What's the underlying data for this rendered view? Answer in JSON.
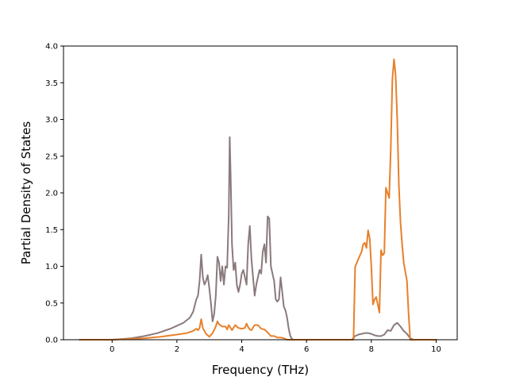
{
  "chart_data": {
    "type": "line",
    "title": "",
    "xlabel": "Frequency (THz)",
    "ylabel": "Partial Density of States",
    "xlim": [
      -1.5,
      10.65
    ],
    "ylim": [
      0,
      4.0
    ],
    "xticks": [
      0,
      2,
      4,
      6,
      8,
      10
    ],
    "xtick_labels": [
      "0",
      "2",
      "4",
      "6",
      "8",
      "10"
    ],
    "yticks": [
      0,
      0.5,
      1.0,
      1.5,
      2.0,
      2.5,
      3.0,
      3.5,
      4.0
    ],
    "ytick_labels": [
      "0.0",
      "0.5",
      "1.0",
      "1.5",
      "2.0",
      "2.5",
      "3.0",
      "3.5",
      "4.0"
    ],
    "grid": false,
    "legend": "none",
    "series": [
      {
        "color": "#8a7a7c",
        "x": [
          -1.0,
          0.0,
          0.3,
          0.6,
          1.0,
          1.4,
          1.8,
          2.0,
          2.2,
          2.4,
          2.5,
          2.6,
          2.65,
          2.7,
          2.75,
          2.8,
          2.85,
          2.9,
          2.95,
          3.0,
          3.05,
          3.1,
          3.15,
          3.2,
          3.25,
          3.3,
          3.35,
          3.4,
          3.45,
          3.5,
          3.55,
          3.6,
          3.63,
          3.66,
          3.7,
          3.75,
          3.8,
          3.85,
          3.9,
          3.95,
          4.0,
          4.05,
          4.1,
          4.15,
          4.2,
          4.25,
          4.3,
          4.35,
          4.4,
          4.45,
          4.5,
          4.55,
          4.6,
          4.65,
          4.7,
          4.75,
          4.8,
          4.85,
          4.9,
          4.95,
          5.0,
          5.05,
          5.1,
          5.15,
          5.2,
          5.25,
          5.3,
          5.35,
          5.4,
          5.45,
          5.5,
          5.55,
          5.6,
          6.0,
          7.0,
          7.4,
          7.5,
          7.6,
          7.7,
          7.8,
          7.9,
          8.0,
          8.1,
          8.2,
          8.3,
          8.4,
          8.5,
          8.6,
          8.7,
          8.8,
          8.9,
          9.0,
          9.1,
          9.2,
          9.3,
          10.0
        ],
        "y": [
          0.0,
          0.0,
          0.01,
          0.02,
          0.05,
          0.09,
          0.15,
          0.19,
          0.23,
          0.3,
          0.38,
          0.55,
          0.6,
          0.8,
          1.16,
          0.85,
          0.75,
          0.8,
          0.88,
          0.7,
          0.5,
          0.25,
          0.35,
          0.6,
          1.13,
          1.05,
          0.8,
          1.0,
          0.75,
          1.0,
          0.98,
          1.7,
          2.76,
          2.2,
          1.3,
          0.95,
          1.05,
          0.75,
          0.65,
          0.75,
          0.9,
          0.95,
          0.85,
          0.75,
          1.3,
          1.55,
          1.1,
          0.85,
          0.6,
          0.75,
          0.85,
          0.95,
          0.9,
          1.2,
          1.3,
          1.05,
          1.68,
          1.65,
          1.0,
          0.9,
          0.8,
          0.55,
          0.52,
          0.55,
          0.85,
          0.65,
          0.45,
          0.4,
          0.3,
          0.15,
          0.05,
          0.01,
          0.0,
          0.0,
          0.0,
          0.0,
          0.05,
          0.07,
          0.08,
          0.09,
          0.09,
          0.08,
          0.06,
          0.05,
          0.05,
          0.07,
          0.13,
          0.12,
          0.2,
          0.23,
          0.18,
          0.12,
          0.08,
          0.02,
          0.0,
          0.0
        ]
      },
      {
        "color": "#e8802a",
        "x": [
          -1.0,
          0.0,
          0.5,
          1.0,
          1.5,
          2.0,
          2.3,
          2.5,
          2.6,
          2.65,
          2.7,
          2.75,
          2.8,
          2.9,
          3.0,
          3.1,
          3.2,
          3.25,
          3.3,
          3.4,
          3.5,
          3.55,
          3.6,
          3.7,
          3.8,
          3.9,
          4.0,
          4.1,
          4.15,
          4.2,
          4.25,
          4.3,
          4.4,
          4.5,
          4.6,
          4.7,
          4.8,
          4.9,
          5.0,
          5.1,
          5.2,
          5.3,
          5.4,
          5.5,
          5.6,
          7.0,
          7.45,
          7.5,
          7.6,
          7.7,
          7.75,
          7.8,
          7.85,
          7.9,
          7.95,
          8.0,
          8.05,
          8.1,
          8.15,
          8.2,
          8.25,
          8.3,
          8.35,
          8.4,
          8.45,
          8.5,
          8.55,
          8.6,
          8.65,
          8.7,
          8.75,
          8.8,
          8.85,
          8.9,
          8.95,
          9.0,
          9.1,
          9.15,
          9.2,
          9.3,
          10.0
        ],
        "y": [
          0.0,
          0.0,
          0.01,
          0.02,
          0.04,
          0.07,
          0.09,
          0.12,
          0.15,
          0.13,
          0.16,
          0.28,
          0.16,
          0.08,
          0.04,
          0.09,
          0.18,
          0.25,
          0.21,
          0.18,
          0.18,
          0.14,
          0.2,
          0.13,
          0.2,
          0.16,
          0.15,
          0.16,
          0.22,
          0.17,
          0.14,
          0.13,
          0.2,
          0.2,
          0.15,
          0.14,
          0.1,
          0.05,
          0.05,
          0.03,
          0.03,
          0.02,
          0.0,
          0.0,
          0.0,
          0.0,
          0.0,
          0.99,
          1.1,
          1.2,
          1.3,
          1.32,
          1.25,
          1.49,
          1.38,
          1.0,
          0.48,
          0.55,
          0.58,
          0.48,
          0.37,
          1.22,
          1.15,
          1.18,
          2.07,
          2.0,
          1.93,
          2.6,
          3.55,
          3.82,
          3.6,
          3.0,
          2.1,
          1.6,
          1.3,
          1.05,
          0.8,
          0.35,
          0.0,
          0.0,
          0.0
        ]
      }
    ]
  }
}
